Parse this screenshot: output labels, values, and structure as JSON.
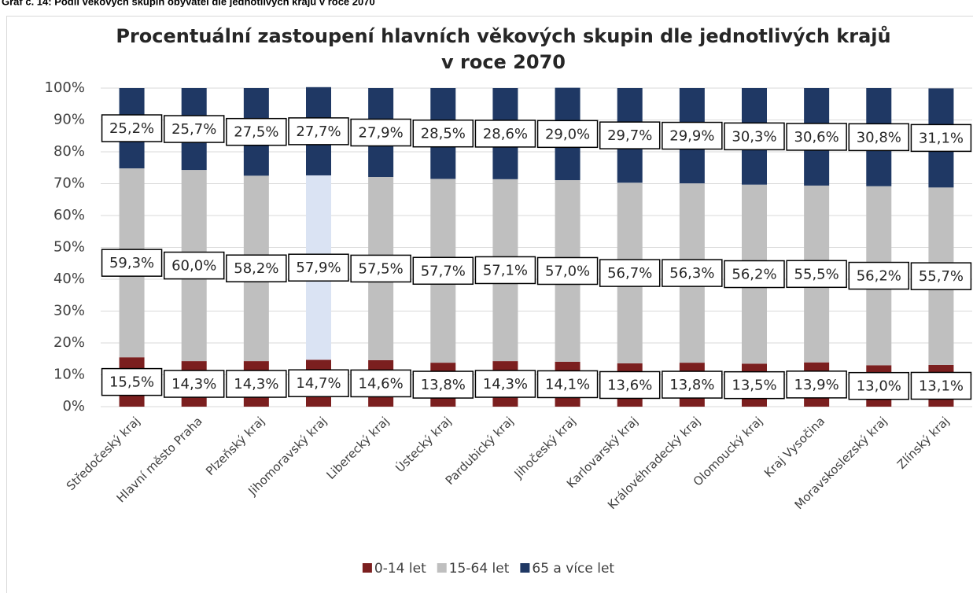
{
  "caption": "Graf č. 14: Podíl věkových skupin obyvatel dle jednotlivých krajů v roce 2070",
  "chart_data": {
    "type": "stacked_bar",
    "title": [
      "Procentuální zastoupení hlavních věkových skupin dle jednotlivých krajů",
      "v roce 2070"
    ],
    "categories": [
      "Středočeský kraj",
      "Hlavní město Praha",
      "Plzeňský kraj",
      "Jihomoravský kraj",
      "Liberecký kraj",
      "Ústecký kraj",
      "Pardubický kraj",
      "Jihočeský kraj",
      "Karlovarský kraj",
      "Královéhradecký kraj",
      "Olomoucký kraj",
      "Kraj Vysočina",
      "Moravskoslezský kraj",
      "Zlínský kraj"
    ],
    "series": [
      {
        "name": "0-14 let",
        "color": "#7b1f1f",
        "values": [
          15.5,
          14.3,
          14.3,
          14.7,
          14.6,
          13.8,
          14.3,
          14.1,
          13.6,
          13.8,
          13.5,
          13.9,
          13.0,
          13.1
        ],
        "value_labels": [
          "15,5%",
          "14,3%",
          "14,3%",
          "14,7%",
          "14,6%",
          "13,8%",
          "14,3%",
          "14,1%",
          "13,6%",
          "13,8%",
          "13,5%",
          "13,9%",
          "13,0%",
          "13,1%"
        ]
      },
      {
        "name": "15-64 let",
        "color": "#bfbfbf",
        "colors": [
          "#bfbfbf",
          "#bfbfbf",
          "#bfbfbf",
          "#dae3f3",
          "#bfbfbf",
          "#bfbfbf",
          "#bfbfbf",
          "#bfbfbf",
          "#bfbfbf",
          "#bfbfbf",
          "#bfbfbf",
          "#bfbfbf",
          "#bfbfbf",
          "#bfbfbf"
        ],
        "values": [
          59.3,
          60.0,
          58.2,
          57.9,
          57.5,
          57.7,
          57.1,
          57.0,
          56.7,
          56.3,
          56.2,
          55.5,
          56.2,
          55.7
        ],
        "value_labels": [
          "59,3%",
          "60,0%",
          "58,2%",
          "57,9%",
          "57,5%",
          "57,7%",
          "57,1%",
          "57,0%",
          "56,7%",
          "56,3%",
          "56,2%",
          "55,5%",
          "56,2%",
          "55,7%"
        ]
      },
      {
        "name": "65 a více let",
        "color": "#1f3864",
        "values": [
          25.2,
          25.7,
          27.5,
          27.7,
          27.9,
          28.5,
          28.6,
          29.0,
          29.7,
          29.9,
          30.3,
          30.6,
          30.8,
          31.1
        ],
        "value_labels": [
          "25,2%",
          "25,7%",
          "27,5%",
          "27,7%",
          "27,9%",
          "28,5%",
          "28,6%",
          "29,0%",
          "29,7%",
          "29,9%",
          "30,3%",
          "30,6%",
          "30,8%",
          "31,1%"
        ]
      }
    ],
    "ylim": [
      0,
      100
    ],
    "yticks": [
      {
        "value": 0,
        "label": "0%"
      },
      {
        "value": 10,
        "label": "10%"
      },
      {
        "value": 20,
        "label": "20%"
      },
      {
        "value": 30,
        "label": "30%"
      },
      {
        "value": 40,
        "label": "40%"
      },
      {
        "value": 50,
        "label": "50%"
      },
      {
        "value": 60,
        "label": "60%"
      },
      {
        "value": 70,
        "label": "70%"
      },
      {
        "value": 80,
        "label": "80%"
      },
      {
        "value": 90,
        "label": "90%"
      },
      {
        "value": 100,
        "label": "100%"
      }
    ],
    "grid": true,
    "legend": "bottom"
  }
}
